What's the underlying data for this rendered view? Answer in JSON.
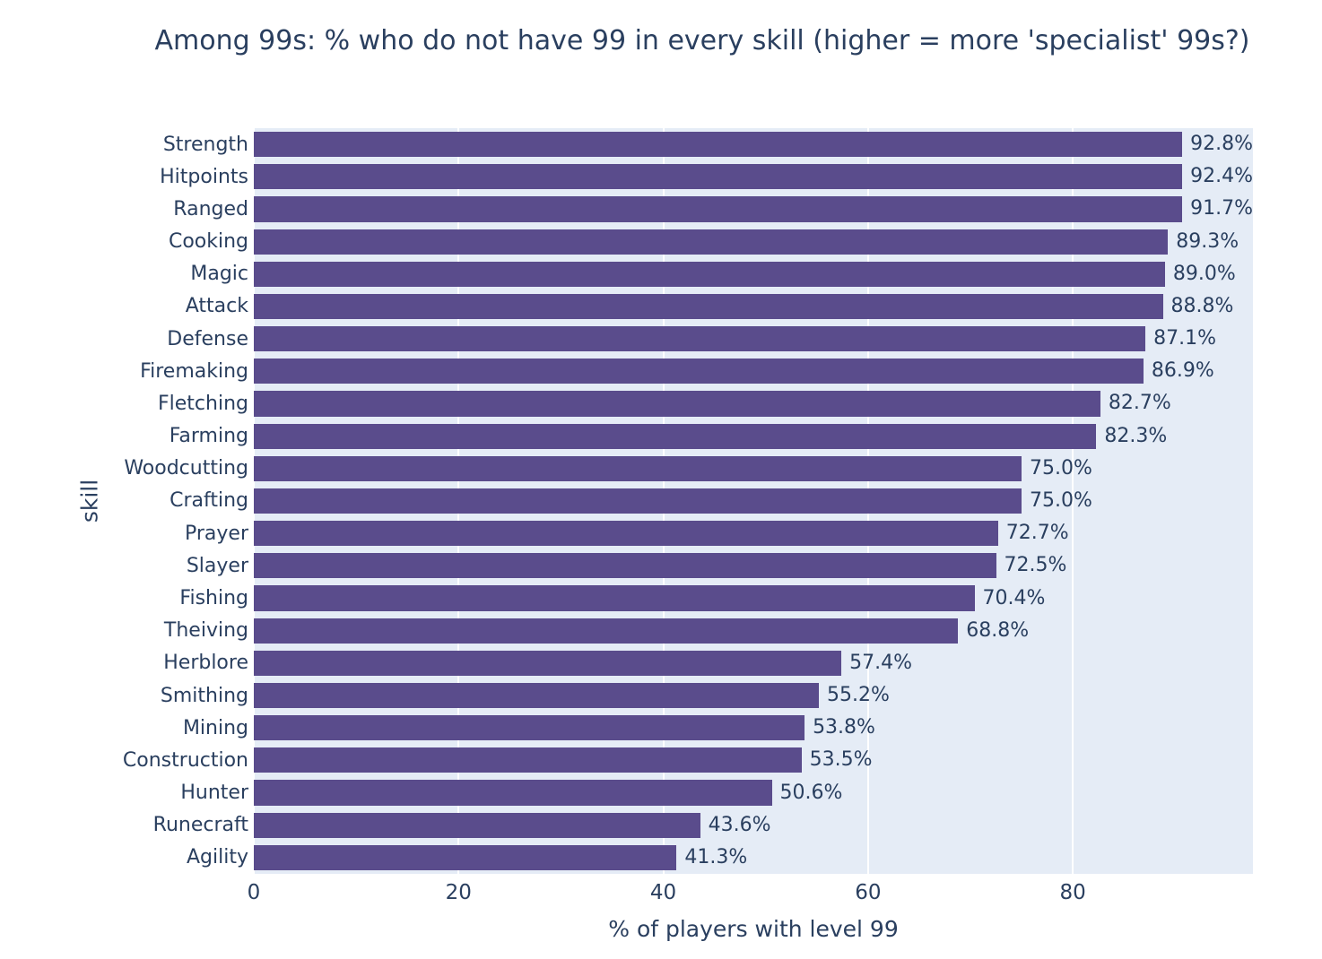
{
  "chart_data": {
    "type": "bar",
    "orientation": "horizontal",
    "title": "Among 99s: % who do not have 99 in every skill (higher = more 'specialist' 99s?)",
    "xlabel": "% of players with level 99",
    "ylabel": "skill",
    "categories": [
      "Strength",
      "Hitpoints",
      "Ranged",
      "Cooking",
      "Magic",
      "Attack",
      "Defense",
      "Firemaking",
      "Fletching",
      "Farming",
      "Woodcutting",
      "Crafting",
      "Prayer",
      "Slayer",
      "Fishing",
      "Theiving",
      "Herblore",
      "Smithing",
      "Mining",
      "Construction",
      "Hunter",
      "Runecraft",
      "Agility"
    ],
    "values": [
      92.8,
      92.4,
      91.7,
      89.3,
      89.0,
      88.8,
      87.1,
      86.9,
      82.7,
      82.3,
      75.0,
      75.0,
      72.7,
      72.5,
      70.4,
      68.8,
      57.4,
      55.2,
      53.8,
      53.5,
      50.6,
      43.6,
      41.3
    ],
    "labels": [
      "92.8%",
      "92.4%",
      "91.7%",
      "89.3%",
      "89.0%",
      "88.8%",
      "87.1%",
      "86.9%",
      "82.7%",
      "82.3%",
      "75.0%",
      "75.0%",
      "72.7%",
      "72.5%",
      "70.4%",
      "68.8%",
      "57.4%",
      "55.2%",
      "53.8%",
      "53.5%",
      "50.6%",
      "43.6%",
      "41.3%"
    ],
    "xlim": [
      0,
      97.6
    ],
    "xticks": [
      0,
      20,
      40,
      60,
      80
    ],
    "xtick_labels": [
      "0",
      "20",
      "40",
      "60",
      "80"
    ],
    "grid": "vertical-white",
    "legend": "none",
    "colors": {
      "bar": "#5a4c8c",
      "plot_background": "#e5ecf6",
      "paper_background": "#ffffff",
      "text": "#2a3f5f",
      "gridline": "#ffffff"
    }
  }
}
